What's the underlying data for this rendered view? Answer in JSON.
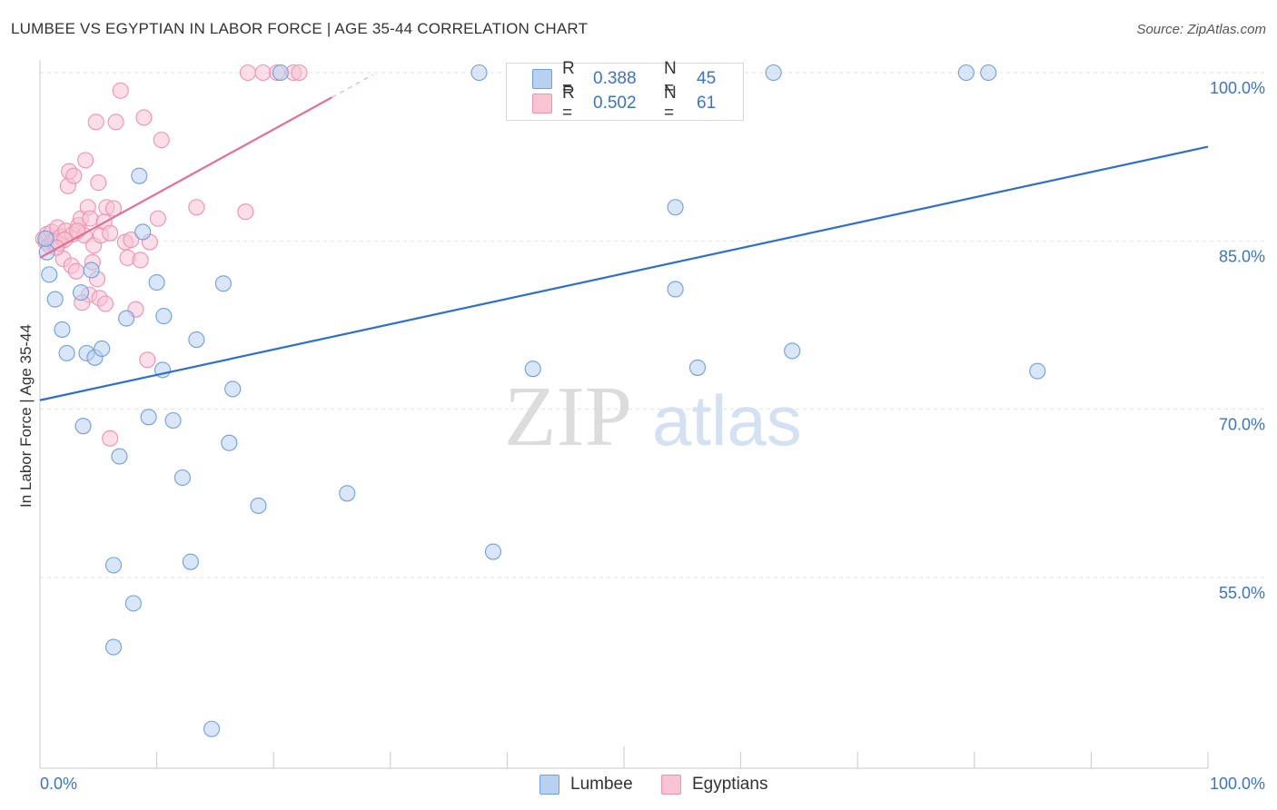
{
  "title": "LUMBEE VS EGYPTIAN IN LABOR FORCE | AGE 35-44 CORRELATION CHART",
  "source": "Source: ZipAtlas.com",
  "watermark": {
    "zip": "ZIP",
    "atlas": "atlas"
  },
  "colors": {
    "lumbee_fill": "#b9d1f1",
    "lumbee_stroke": "#6f9fdc",
    "lumbee_line": "#2c6fcd",
    "egypt_fill": "#f8c3d3",
    "egypt_stroke": "#ef92b0",
    "egypt_line": "#e46e95",
    "axis_label": "#3b74c4",
    "grid": "#e2e2e2"
  },
  "legend": {
    "rows": [
      {
        "series": "Lumbee",
        "r_label": "R =",
        "r_value": "0.388",
        "n_label": "N =",
        "n_value": "45"
      },
      {
        "series": "Egyptians",
        "r_label": "R =",
        "r_value": "0.502",
        "n_label": "N =",
        "n_value": "61"
      }
    ]
  },
  "bottom_legend": [
    {
      "label": "Lumbee"
    },
    {
      "label": "Egyptians"
    }
  ],
  "chart_data": {
    "type": "scatter",
    "title": "LUMBEE VS EGYPTIAN IN LABOR FORCE | AGE 35-44 CORRELATION CHART",
    "xlabel": "",
    "ylabel": "In Labor Force | Age 35-44",
    "xlim": [
      0,
      100
    ],
    "ylim": [
      38,
      100
    ],
    "x_tick_labels": [
      "0.0%",
      "100.0%"
    ],
    "y_ticks": [
      100,
      85,
      70,
      55
    ],
    "y_tick_labels": [
      "100.0%",
      "85.0%",
      "70.0%",
      "55.0%"
    ],
    "grid": true,
    "series": [
      {
        "name": "Lumbee",
        "R": 0.388,
        "N": 45,
        "trend": {
          "x": [
            0,
            100
          ],
          "y": [
            70.8,
            93.4
          ]
        },
        "points": [
          [
            0.6,
            84.0
          ],
          [
            0.8,
            82.0
          ],
          [
            1.3,
            79.8
          ],
          [
            1.9,
            77.1
          ],
          [
            2.3,
            75.0
          ],
          [
            3.5,
            80.4
          ],
          [
            3.7,
            68.5
          ],
          [
            4.0,
            75.0
          ],
          [
            4.4,
            82.4
          ],
          [
            4.7,
            74.6
          ],
          [
            5.3,
            75.4
          ],
          [
            6.3,
            56.1
          ],
          [
            6.8,
            65.8
          ],
          [
            7.4,
            78.1
          ],
          [
            8.0,
            52.7
          ],
          [
            8.5,
            90.8
          ],
          [
            8.8,
            85.8
          ],
          [
            9.3,
            69.3
          ],
          [
            10.0,
            81.3
          ],
          [
            10.5,
            73.5
          ],
          [
            10.6,
            78.3
          ],
          [
            11.4,
            69.0
          ],
          [
            12.2,
            63.9
          ],
          [
            12.9,
            56.4
          ],
          [
            13.4,
            76.2
          ],
          [
            14.7,
            41.5
          ],
          [
            15.7,
            81.2
          ],
          [
            16.2,
            67.0
          ],
          [
            16.5,
            71.8
          ],
          [
            18.7,
            61.4
          ],
          [
            20.6,
            100.0
          ],
          [
            26.3,
            62.5
          ],
          [
            37.6,
            100.0
          ],
          [
            38.8,
            57.3
          ],
          [
            42.2,
            73.6
          ],
          [
            54.4,
            88.0
          ],
          [
            54.4,
            80.7
          ],
          [
            56.3,
            73.7
          ],
          [
            62.8,
            100.0
          ],
          [
            64.4,
            75.2
          ],
          [
            79.3,
            100.0
          ],
          [
            81.2,
            100.0
          ],
          [
            85.4,
            73.4
          ],
          [
            6.3,
            48.8
          ],
          [
            0.5,
            85.2
          ]
        ]
      },
      {
        "name": "Egyptians",
        "R": 0.502,
        "N": 61,
        "trend": {
          "x": [
            0,
            25
          ],
          "y": [
            83.5,
            97.8
          ]
        },
        "points": [
          [
            0.3,
            85.2
          ],
          [
            0.5,
            84.9
          ],
          [
            0.6,
            85.6
          ],
          [
            0.8,
            84.6
          ],
          [
            1.0,
            85.8
          ],
          [
            1.1,
            85.0
          ],
          [
            1.3,
            85.0
          ],
          [
            1.5,
            86.2
          ],
          [
            1.6,
            84.8
          ],
          [
            1.8,
            85.4
          ],
          [
            2.0,
            83.4
          ],
          [
            2.2,
            85.9
          ],
          [
            2.4,
            89.9
          ],
          [
            2.5,
            91.2
          ],
          [
            2.7,
            82.8
          ],
          [
            2.8,
            85.6
          ],
          [
            2.9,
            90.8
          ],
          [
            3.1,
            82.3
          ],
          [
            3.3,
            86.4
          ],
          [
            3.5,
            87.0
          ],
          [
            3.8,
            85.5
          ],
          [
            4.1,
            88.0
          ],
          [
            4.2,
            80.2
          ],
          [
            4.3,
            87.0
          ],
          [
            4.5,
            83.1
          ],
          [
            4.6,
            84.6
          ],
          [
            4.8,
            95.6
          ],
          [
            5.0,
            90.2
          ],
          [
            5.2,
            85.5
          ],
          [
            5.5,
            86.7
          ],
          [
            5.7,
            88.0
          ],
          [
            6.0,
            85.7
          ],
          [
            6.3,
            87.9
          ],
          [
            6.5,
            95.6
          ],
          [
            6.9,
            98.4
          ],
          [
            7.3,
            84.9
          ],
          [
            7.5,
            83.5
          ],
          [
            7.8,
            85.1
          ],
          [
            8.2,
            78.9
          ],
          [
            8.6,
            83.3
          ],
          [
            8.9,
            96.0
          ],
          [
            9.2,
            74.4
          ],
          [
            9.4,
            84.9
          ],
          [
            10.1,
            87.0
          ],
          [
            10.4,
            94.0
          ],
          [
            13.4,
            88.0
          ],
          [
            17.6,
            87.6
          ],
          [
            17.8,
            100.0
          ],
          [
            19.1,
            100.0
          ],
          [
            20.3,
            100.0
          ],
          [
            21.7,
            100.0
          ],
          [
            22.2,
            100.0
          ],
          [
            3.6,
            79.5
          ],
          [
            6.0,
            67.4
          ],
          [
            4.9,
            81.6
          ],
          [
            5.1,
            79.9
          ],
          [
            3.9,
            92.2
          ],
          [
            2.1,
            85.1
          ],
          [
            1.4,
            84.4
          ],
          [
            3.2,
            85.9
          ],
          [
            5.6,
            79.4
          ]
        ]
      }
    ]
  }
}
